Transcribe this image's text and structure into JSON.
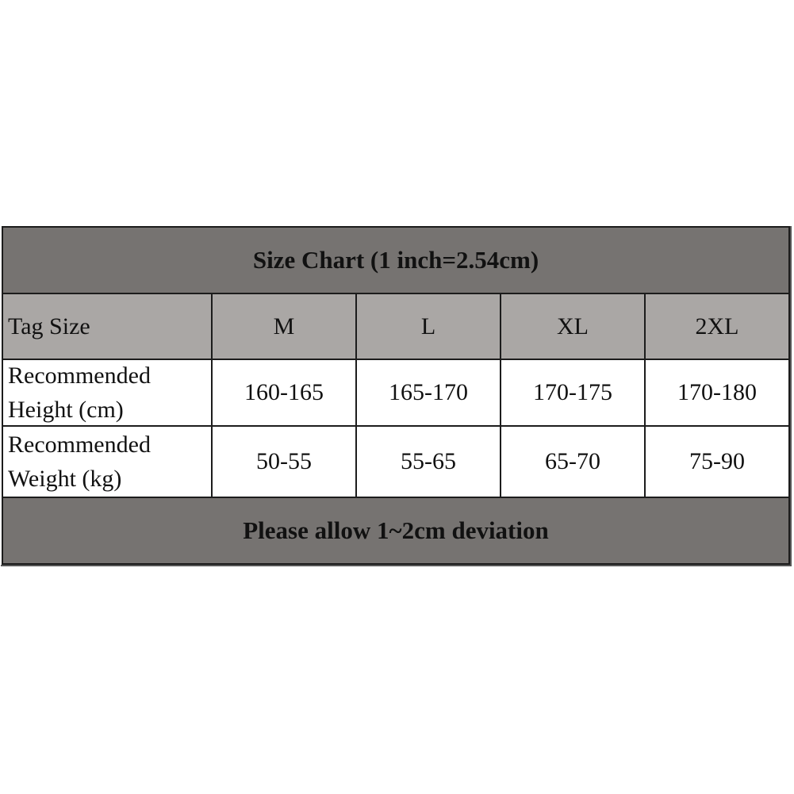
{
  "table": {
    "title": "Size Chart (1 inch=2.54cm)",
    "header": [
      "Tag Size",
      "M",
      "L",
      "XL",
      "2XL"
    ],
    "rows": [
      [
        "Recommended Height (cm)",
        "160-165",
        "165-170",
        "170-175",
        "170-180"
      ],
      [
        "Recommended Weight (kg)",
        "50-55",
        "55-65",
        "65-70",
        "75-90"
      ]
    ],
    "footer": "Please allow 1~2cm deviation"
  }
}
